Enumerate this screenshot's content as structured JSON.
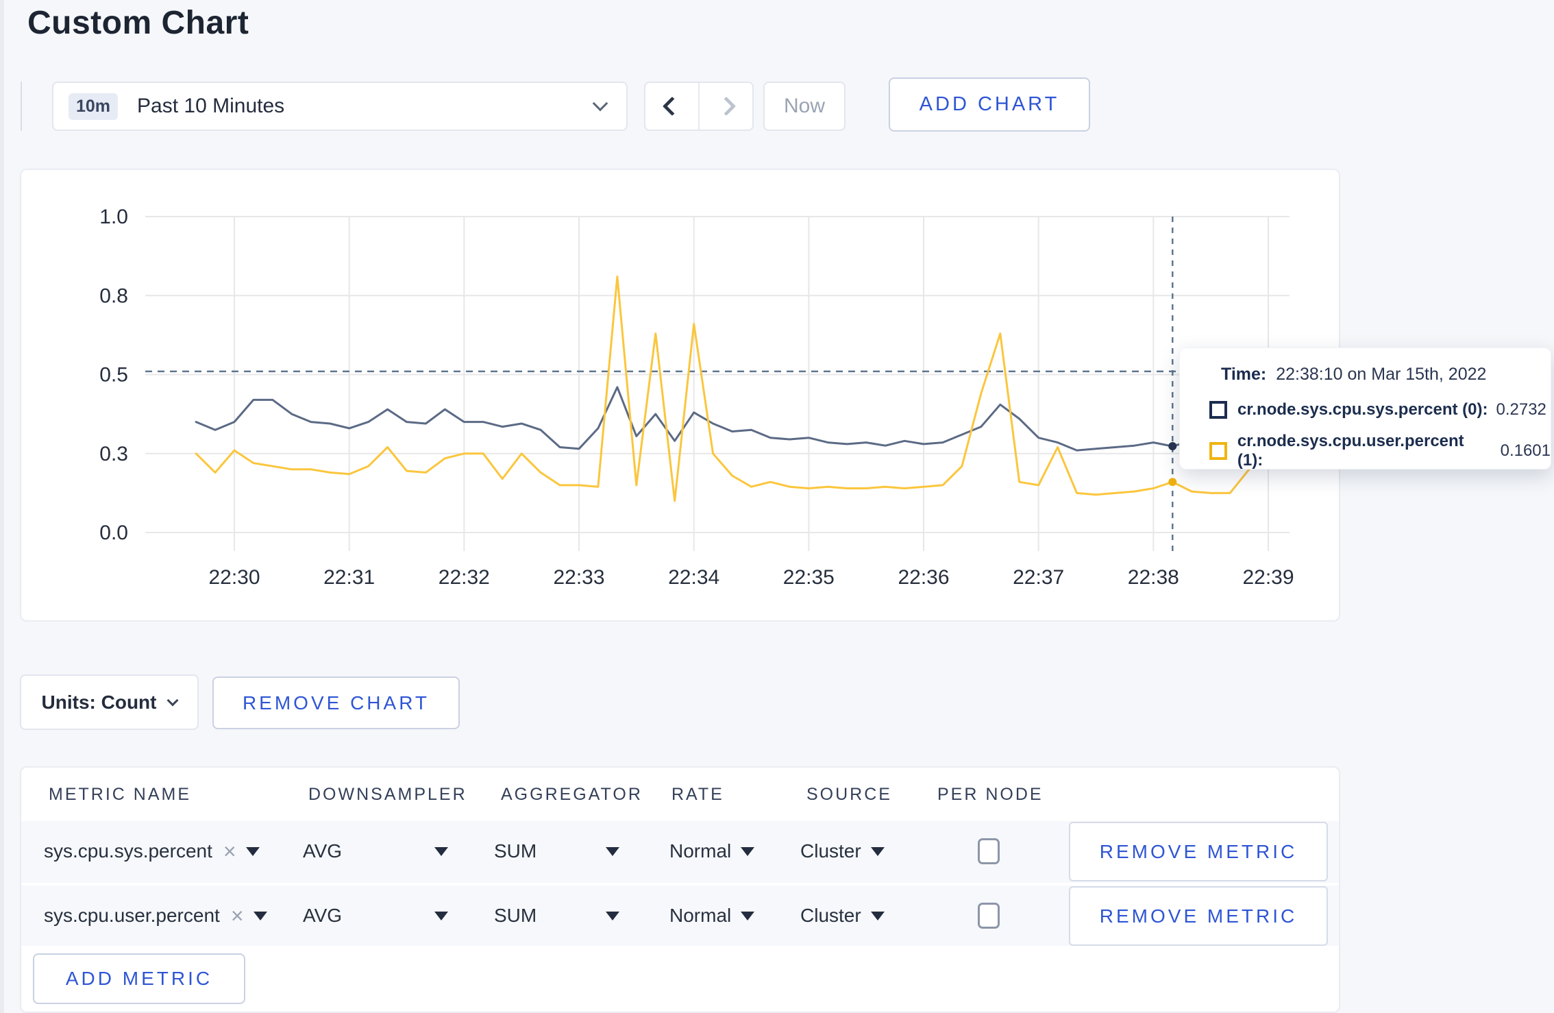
{
  "page": {
    "title": "Custom Chart"
  },
  "toolbar": {
    "time_badge": "10m",
    "time_range_label": "Past 10 Minutes",
    "now_label": "Now",
    "add_chart_label": "ADD CHART"
  },
  "colors": {
    "accent_blue": "#2e55d4",
    "series_sys": "#5b6a85",
    "series_user": "#fbc63d",
    "swatch_sys": "#1c2d4e",
    "swatch_user": "#f0b411",
    "grid": "#e7e7e7",
    "dashed_guide": "#5f7590"
  },
  "chart": {
    "tooltip": {
      "time_label": "Time:",
      "time_value": "22:38:10 on Mar 15th, 2022",
      "rows": [
        {
          "label": "cr.node.sys.cpu.sys.percent (0):",
          "value": "0.2732",
          "color": "#1c2d4e"
        },
        {
          "label": "cr.node.sys.cpu.user.percent (1):",
          "value": "0.1601",
          "color": "#f0b411"
        }
      ]
    }
  },
  "chart_data": {
    "type": "line",
    "title": "",
    "xlabel": "",
    "ylabel": "",
    "ylim": [
      0,
      1
    ],
    "grid": true,
    "legend_position": "tooltip",
    "y_ticks": [
      {
        "value": 0,
        "label": "0.0"
      },
      {
        "value": 0.25,
        "label": "0.3"
      },
      {
        "value": 0.5,
        "label": "0.5"
      },
      {
        "value": 0.75,
        "label": "0.8"
      },
      {
        "value": 1,
        "label": "1.0"
      }
    ],
    "x_ticks": [
      "22:30",
      "22:31",
      "22:32",
      "22:33",
      "22:34",
      "22:35",
      "22:36",
      "22:37",
      "22:38",
      "22:39"
    ],
    "x": [
      "22:29:40",
      "22:29:50",
      "22:30:00",
      "22:30:10",
      "22:30:20",
      "22:30:30",
      "22:30:40",
      "22:30:50",
      "22:31:00",
      "22:31:10",
      "22:31:20",
      "22:31:30",
      "22:31:40",
      "22:31:50",
      "22:32:00",
      "22:32:10",
      "22:32:20",
      "22:32:30",
      "22:32:40",
      "22:32:50",
      "22:33:00",
      "22:33:10",
      "22:33:20",
      "22:33:30",
      "22:33:40",
      "22:33:50",
      "22:34:00",
      "22:34:10",
      "22:34:20",
      "22:34:30",
      "22:34:40",
      "22:34:50",
      "22:35:00",
      "22:35:10",
      "22:35:20",
      "22:35:30",
      "22:35:40",
      "22:35:50",
      "22:36:00",
      "22:36:10",
      "22:36:20",
      "22:36:30",
      "22:36:40",
      "22:36:50",
      "22:37:00",
      "22:37:10",
      "22:37:20",
      "22:37:30",
      "22:37:40",
      "22:37:50",
      "22:38:00",
      "22:38:10",
      "22:38:20",
      "22:38:30",
      "22:38:40",
      "22:38:50",
      "22:39:00"
    ],
    "series": [
      {
        "name": "cr.node.sys.cpu.sys.percent (0)",
        "color": "#5b6a85",
        "values": [
          0.35,
          0.325,
          0.35,
          0.42,
          0.42,
          0.375,
          0.35,
          0.345,
          0.33,
          0.35,
          0.39,
          0.35,
          0.345,
          0.39,
          0.35,
          0.35,
          0.335,
          0.345,
          0.325,
          0.27,
          0.265,
          0.33,
          0.46,
          0.305,
          0.375,
          0.29,
          0.38,
          0.345,
          0.32,
          0.325,
          0.3,
          0.295,
          0.3,
          0.285,
          0.28,
          0.285,
          0.275,
          0.29,
          0.28,
          0.285,
          0.31,
          0.335,
          0.405,
          0.36,
          0.3,
          0.285,
          0.26,
          0.265,
          0.27,
          0.275,
          0.285,
          0.2732,
          0.29,
          0.295,
          0.29,
          0.3,
          0.3
        ]
      },
      {
        "name": "cr.node.sys.cpu.user.percent (1)",
        "color": "#fbc63d",
        "values": [
          0.25,
          0.19,
          0.26,
          0.22,
          0.21,
          0.2,
          0.2,
          0.19,
          0.185,
          0.21,
          0.27,
          0.195,
          0.19,
          0.235,
          0.25,
          0.25,
          0.17,
          0.25,
          0.19,
          0.15,
          0.15,
          0.145,
          0.81,
          0.15,
          0.63,
          0.1,
          0.66,
          0.25,
          0.18,
          0.145,
          0.16,
          0.145,
          0.14,
          0.145,
          0.14,
          0.14,
          0.145,
          0.14,
          0.145,
          0.15,
          0.21,
          0.44,
          0.63,
          0.16,
          0.15,
          0.27,
          0.125,
          0.12,
          0.125,
          0.13,
          0.14,
          0.1601,
          0.13,
          0.125,
          0.125,
          0.2,
          0.28
        ]
      }
    ],
    "crosshair": {
      "time": "22:38:10",
      "guide_value": 0.51,
      "values": [
        0.2732,
        0.1601
      ],
      "dot_colors": [
        "#273450",
        "#eeb211"
      ]
    }
  },
  "units": {
    "label": "Units: Count"
  },
  "remove_chart_label": "REMOVE CHART",
  "table": {
    "headers": [
      "METRIC NAME",
      "DOWNSAMPLER",
      "AGGREGATOR",
      "RATE",
      "SOURCE",
      "PER NODE"
    ],
    "remove_metric_label": "REMOVE METRIC",
    "add_metric_label": "ADD METRIC",
    "remove_icon": "×",
    "rows": [
      {
        "metric": "sys.cpu.sys.percent",
        "downsampler": "AVG",
        "aggregator": "SUM",
        "rate": "Normal",
        "source": "Cluster",
        "per_node": false
      },
      {
        "metric": "sys.cpu.user.percent",
        "downsampler": "AVG",
        "aggregator": "SUM",
        "rate": "Normal",
        "source": "Cluster",
        "per_node": false
      }
    ]
  }
}
